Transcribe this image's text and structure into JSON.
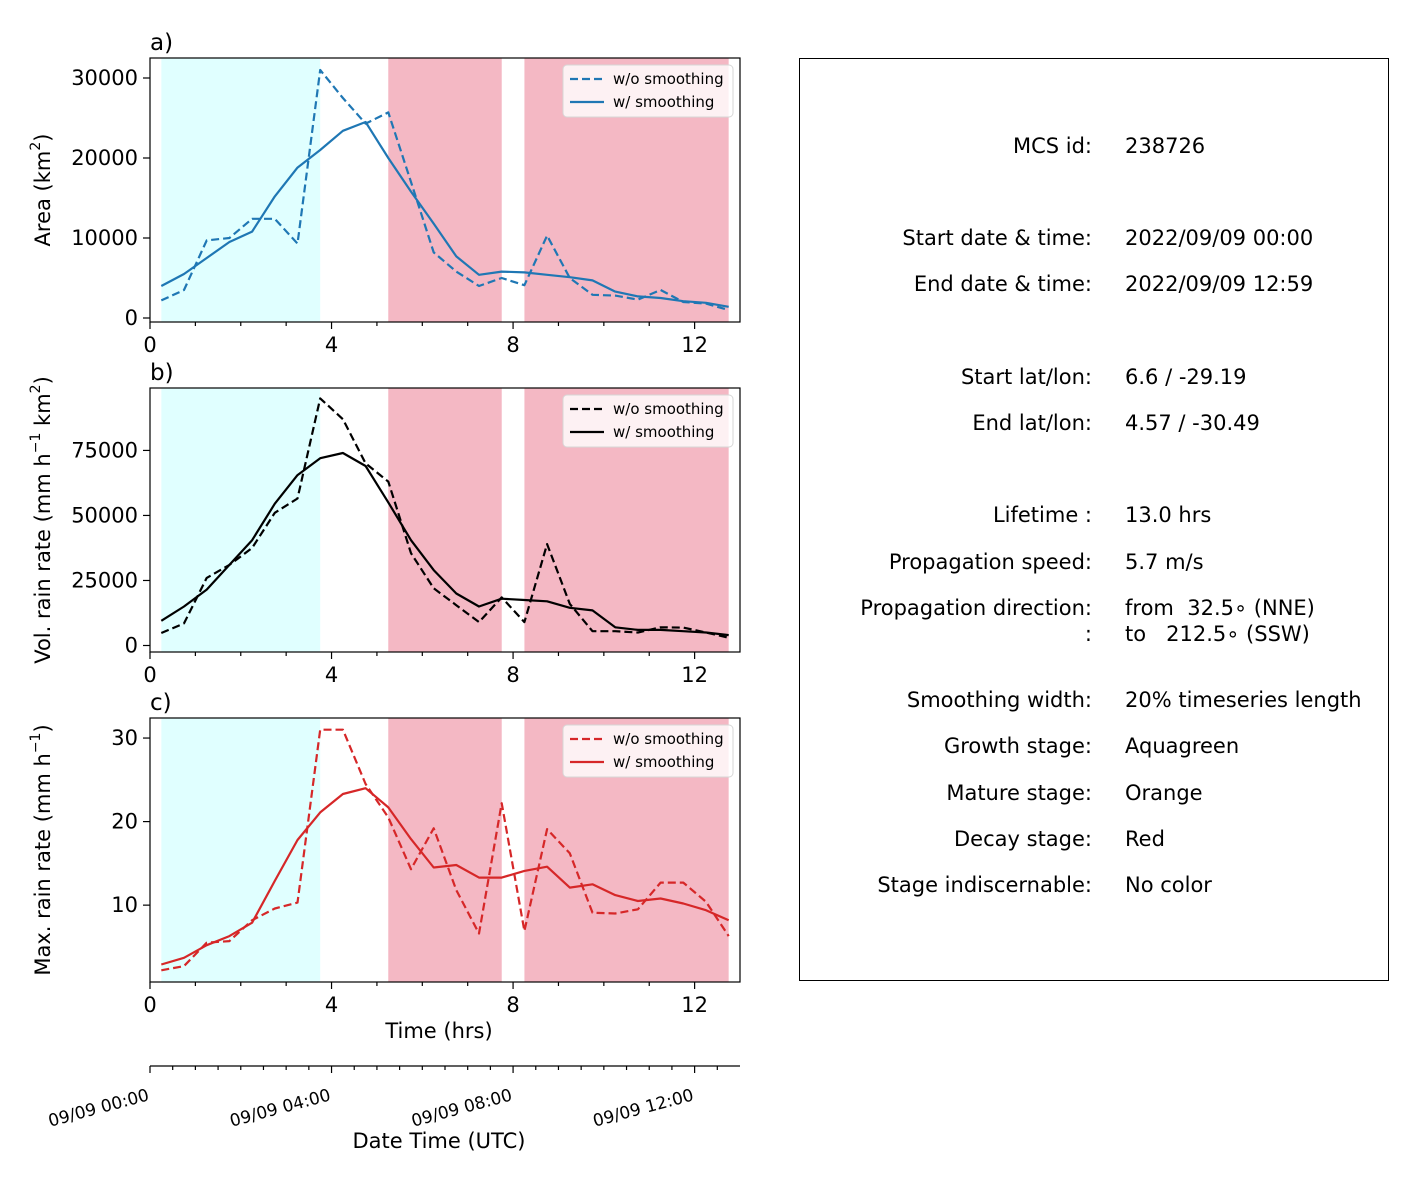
{
  "chart_data": [
    {
      "type": "line",
      "panel_label": "a)",
      "ylabel": "Area  (km²)",
      "xlim": [
        0,
        13
      ],
      "ylim": [
        -500,
        32500
      ],
      "xticks": [
        0,
        4,
        8,
        12
      ],
      "yticks": [
        0,
        10000,
        20000,
        30000
      ],
      "ytick_labels": [
        "0",
        "10000",
        "20000",
        "30000"
      ],
      "x": [
        0.25,
        0.75,
        1.25,
        1.75,
        2.25,
        2.75,
        3.25,
        3.75,
        4.25,
        4.75,
        5.25,
        5.75,
        6.25,
        6.75,
        7.25,
        7.75,
        8.25,
        8.75,
        9.25,
        9.75,
        10.25,
        10.75,
        11.25,
        11.75,
        12.25,
        12.75
      ],
      "series": [
        {
          "name": "w/o smoothing",
          "style": "dashed",
          "color": "#1f77b4",
          "values": [
            2200,
            3500,
            9700,
            10000,
            12400,
            12400,
            9300,
            31000,
            27500,
            24300,
            25700,
            17000,
            8200,
            5800,
            4000,
            5000,
            4100,
            10300,
            5000,
            2900,
            2800,
            2300,
            3500,
            2000,
            1800,
            1000
          ]
        },
        {
          "name": "w/ smoothing",
          "style": "solid",
          "color": "#1f77b4",
          "values": [
            4000,
            5500,
            7500,
            9500,
            10800,
            15200,
            18800,
            21000,
            23400,
            24500,
            20000,
            15800,
            11800,
            7700,
            5400,
            5800,
            5700,
            5400,
            5100,
            4700,
            3300,
            2700,
            2500,
            2100,
            1900,
            1400
          ]
        }
      ],
      "legend": "top-right"
    },
    {
      "type": "line",
      "panel_label": "b)",
      "ylabel": "Vol. rain rate (mm h⁻¹ km²)",
      "xlim": [
        0,
        13
      ],
      "ylim": [
        -2500,
        99000
      ],
      "xticks": [
        0,
        4,
        8,
        12
      ],
      "yticks": [
        0,
        25000,
        50000,
        75000
      ],
      "ytick_labels": [
        "0",
        "25000",
        "50000",
        "75000"
      ],
      "x": [
        0.25,
        0.75,
        1.25,
        1.75,
        2.25,
        2.75,
        3.25,
        3.75,
        4.25,
        4.75,
        5.25,
        5.75,
        6.25,
        6.75,
        7.25,
        7.75,
        8.25,
        8.75,
        9.25,
        9.75,
        10.25,
        10.75,
        11.25,
        11.75,
        12.25,
        12.75
      ],
      "series": [
        {
          "name": "w/o smoothing",
          "style": "dashed",
          "color": "#000000",
          "values": [
            4800,
            8500,
            26000,
            31000,
            37500,
            51000,
            56500,
            95000,
            87000,
            70000,
            63000,
            35500,
            22000,
            15500,
            9000,
            18500,
            9000,
            39000,
            16000,
            5500,
            5500,
            5000,
            7000,
            6900,
            5000,
            3000
          ]
        },
        {
          "name": "w/ smoothing",
          "style": "solid",
          "color": "#000000",
          "values": [
            9500,
            15000,
            21500,
            31000,
            40500,
            54500,
            65500,
            72000,
            74000,
            69000,
            55000,
            40500,
            29000,
            20000,
            15000,
            18000,
            17500,
            17000,
            14500,
            13500,
            7000,
            6000,
            6000,
            5500,
            5000,
            4000
          ]
        }
      ],
      "legend": "top-right"
    },
    {
      "type": "line",
      "panel_label": "c)",
      "ylabel": "Max. rain rate  (mm h⁻¹)",
      "xlabel": "Time (hrs)",
      "xlim": [
        0,
        13
      ],
      "ylim": [
        0.8,
        32.4
      ],
      "xticks": [
        0,
        4,
        8,
        12
      ],
      "yticks": [
        10,
        20,
        30
      ],
      "ytick_labels": [
        "10",
        "20",
        "30"
      ],
      "x": [
        0.25,
        0.75,
        1.25,
        1.75,
        2.25,
        2.75,
        3.25,
        3.75,
        4.25,
        4.75,
        5.25,
        5.75,
        6.25,
        6.75,
        7.25,
        7.75,
        8.25,
        8.75,
        9.25,
        9.75,
        10.25,
        10.75,
        11.25,
        11.75,
        12.25,
        12.75
      ],
      "series": [
        {
          "name": "w/o smoothing",
          "style": "dashed",
          "color": "#d62728",
          "values": [
            2.2,
            2.7,
            5.5,
            5.7,
            8.2,
            9.6,
            10.3,
            31.0,
            31.0,
            24.5,
            20.5,
            14.3,
            19.2,
            11.8,
            6.6,
            22.2,
            6.9,
            19.1,
            16.2,
            9.1,
            9.0,
            9.5,
            12.7,
            12.7,
            10.4,
            6.3
          ]
        },
        {
          "name": "w/ smoothing",
          "style": "solid",
          "color": "#d62728",
          "values": [
            2.9,
            3.7,
            5.2,
            6.3,
            7.9,
            12.9,
            17.8,
            21.1,
            23.3,
            24.0,
            21.7,
            17.9,
            14.5,
            14.8,
            13.3,
            13.3,
            14.1,
            14.6,
            12.1,
            12.5,
            11.2,
            10.5,
            10.8,
            10.2,
            9.4,
            8.2
          ]
        }
      ],
      "legend": "top-right"
    }
  ],
  "stage_spans": [
    {
      "stage": "growth",
      "start": 0.25,
      "end": 3.75,
      "color": "#e0ffff"
    },
    {
      "stage": "decay",
      "start": 5.25,
      "end": 7.75,
      "color": "#f4b8c4"
    },
    {
      "stage": "decay",
      "start": 8.25,
      "end": 12.75,
      "color": "#f4b8c4"
    }
  ],
  "datetime_axis": {
    "xlabel": "Date Time (UTC)",
    "ticks": [
      {
        "x": 0,
        "label": "09/09 00:00"
      },
      {
        "x": 4,
        "label": "09/09 04:00"
      },
      {
        "x": 8,
        "label": "09/09 08:00"
      },
      {
        "x": 12,
        "label": "09/09 12:00"
      }
    ],
    "minor_tick_step": 0.5
  },
  "info": [
    {
      "label": "MCS id:",
      "value": "238726"
    },
    {
      "label": "Start date & time:",
      "value": "2022/09/09 00:00"
    },
    {
      "label": "End date & time:",
      "value": "2022/09/09 12:59"
    },
    {
      "label": "Start lat/lon:",
      "value": "6.6 / -29.19"
    },
    {
      "label": "End lat/lon:",
      "value": "4.57 / -30.49"
    },
    {
      "label": "Lifetime :",
      "value": "13.0 hrs"
    },
    {
      "label": "Propagation speed:",
      "value": "5.7 m/s"
    },
    {
      "label": "Propagation direction:",
      "value": "from  32.5∘ (NNE)"
    },
    {
      "label": ":",
      "value": "to   212.5∘ (SSW)"
    },
    {
      "label": "Smoothing width:",
      "value": "20% timeseries length"
    },
    {
      "label": "Growth stage:",
      "value": "Aquagreen"
    },
    {
      "label": "Mature stage:",
      "value": "Orange"
    },
    {
      "label": "Decay stage:",
      "value": "Red"
    },
    {
      "label": "Stage indiscernable:",
      "value": "No color"
    }
  ]
}
